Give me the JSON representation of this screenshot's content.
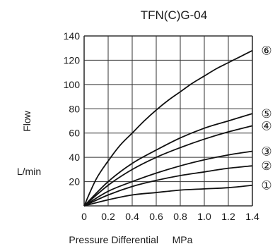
{
  "chart_data": {
    "type": "line",
    "title": "TFN(C)G-04",
    "ylabel": "Flow",
    "yunit": "L/min",
    "xlabel": "Pressure Differential",
    "xunit": "MPa",
    "xlim": [
      0,
      1.4
    ],
    "ylim": [
      0,
      140
    ],
    "x_ticks": [
      "0",
      "0.2",
      "0.4",
      "0.6",
      "0.8",
      "1.0",
      "1.2",
      "1.4"
    ],
    "y_ticks": [
      "20",
      "40",
      "60",
      "80",
      "100",
      "120",
      "140"
    ],
    "grid": true,
    "series": [
      {
        "name": "⑥",
        "x": [
          0,
          0.1,
          0.2,
          0.3,
          0.4,
          0.5,
          0.6,
          0.7,
          0.8,
          0.9,
          1.0,
          1.1,
          1.2,
          1.3,
          1.4
        ],
        "values": [
          0,
          22,
          37,
          50,
          60,
          70,
          79,
          87,
          94,
          101,
          107,
          113,
          118,
          123,
          128
        ]
      },
      {
        "name": "⑤",
        "x": [
          0,
          0.2,
          0.4,
          0.6,
          0.8,
          1.0,
          1.2,
          1.4
        ],
        "values": [
          0,
          20,
          35,
          46,
          56,
          64,
          70,
          76
        ]
      },
      {
        "name": "④",
        "x": [
          0,
          0.2,
          0.4,
          0.6,
          0.8,
          1.0,
          1.2,
          1.4
        ],
        "values": [
          0,
          17,
          30,
          40,
          48,
          55,
          61,
          66
        ]
      },
      {
        "name": "③",
        "x": [
          0,
          0.2,
          0.4,
          0.6,
          0.8,
          1.0,
          1.2,
          1.4
        ],
        "values": [
          0,
          12,
          20,
          27,
          33,
          38,
          42,
          45
        ]
      },
      {
        "name": "②",
        "x": [
          0,
          0.2,
          0.4,
          0.6,
          0.8,
          1.0,
          1.2,
          1.4
        ],
        "values": [
          0,
          9,
          16,
          21,
          25,
          28,
          31,
          33
        ]
      },
      {
        "name": "①",
        "x": [
          0,
          0.2,
          0.4,
          0.6,
          0.8,
          1.0,
          1.2,
          1.4
        ],
        "values": [
          0,
          5,
          9,
          11,
          13,
          14,
          15,
          17
        ]
      }
    ]
  }
}
